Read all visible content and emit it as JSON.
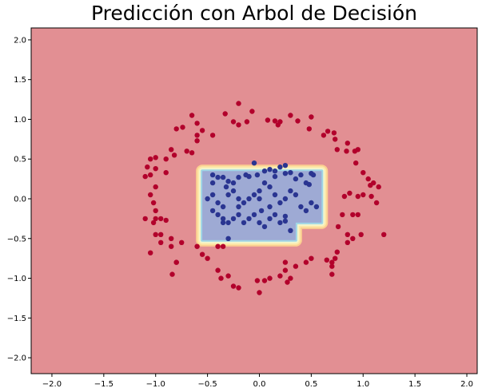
{
  "chart_data": {
    "type": "scatter",
    "title": "Predicción con Arbol de Decisión",
    "xlim": [
      -2.2,
      2.1
    ],
    "ylim": [
      -2.2,
      2.15
    ],
    "x_ticks": [
      "−2.0",
      "−1.5",
      "−1.0",
      "−0.5",
      "0.0",
      "0.5",
      "1.0",
      "1.5",
      "2.0"
    ],
    "x_tick_values": [
      -2.0,
      -1.5,
      -1.0,
      -0.5,
      0.0,
      0.5,
      1.0,
      1.5,
      2.0
    ],
    "y_ticks": [
      "2.0",
      "1.5",
      "1.0",
      "0.5",
      "0.0",
      "−0.5",
      "−1.0",
      "−1.5",
      "−2.0"
    ],
    "y_tick_values": [
      2.0,
      1.5,
      1.0,
      0.5,
      0.0,
      -0.5,
      -1.0,
      -1.5,
      -2.0
    ],
    "background_region_color": "#e28f93",
    "inner_region_color": "#9eaad4",
    "inner_region_edge_colors": [
      "#9fd5e6",
      "#f3f6cc",
      "#fde8a8",
      "#fbcf91"
    ],
    "decision_region_polygon": [
      [
        -0.55,
        0.35
      ],
      [
        0.6,
        0.35
      ],
      [
        0.6,
        -0.3
      ],
      [
        0.35,
        -0.3
      ],
      [
        0.35,
        -0.52
      ],
      [
        -0.55,
        -0.52
      ]
    ],
    "series": [
      {
        "color": "#b2002b",
        "points": [
          [
            -0.2,
            1.2
          ],
          [
            -0.07,
            1.1
          ],
          [
            0.15,
            0.98
          ],
          [
            0.18,
            0.93
          ],
          [
            0.2,
            0.97
          ],
          [
            0.08,
            0.99
          ],
          [
            -0.33,
            1.07
          ],
          [
            -0.65,
            1.05
          ],
          [
            -0.74,
            0.9
          ],
          [
            -0.6,
            0.95
          ],
          [
            -0.6,
            0.8
          ],
          [
            -0.6,
            0.73
          ],
          [
            -0.8,
            0.88
          ],
          [
            -0.55,
            0.86
          ],
          [
            -0.45,
            0.8
          ],
          [
            -0.2,
            0.93
          ],
          [
            -0.25,
            0.97
          ],
          [
            -0.12,
            0.97
          ],
          [
            0.3,
            1.05
          ],
          [
            0.37,
            0.98
          ],
          [
            0.5,
            1.03
          ],
          [
            0.48,
            0.88
          ],
          [
            0.62,
            0.8
          ],
          [
            0.66,
            0.85
          ],
          [
            0.72,
            0.83
          ],
          [
            0.73,
            0.75
          ],
          [
            0.75,
            0.62
          ],
          [
            0.85,
            0.7
          ],
          [
            0.92,
            0.6
          ],
          [
            0.95,
            0.62
          ],
          [
            0.84,
            0.6
          ],
          [
            0.93,
            0.45
          ],
          [
            1.0,
            0.33
          ],
          [
            1.05,
            0.25
          ],
          [
            1.1,
            0.2
          ],
          [
            1.15,
            0.15
          ],
          [
            1.07,
            0.17
          ],
          [
            0.82,
            0.03
          ],
          [
            0.87,
            0.07
          ],
          [
            0.95,
            0.03
          ],
          [
            1.0,
            0.05
          ],
          [
            1.08,
            0.03
          ],
          [
            1.13,
            -0.05
          ],
          [
            0.9,
            -0.2
          ],
          [
            0.8,
            -0.2
          ],
          [
            0.95,
            -0.2
          ],
          [
            0.76,
            -0.35
          ],
          [
            0.85,
            -0.45
          ],
          [
            0.9,
            -0.5
          ],
          [
            0.98,
            -0.45
          ],
          [
            1.2,
            -0.45
          ],
          [
            0.85,
            -0.55
          ],
          [
            0.75,
            -0.67
          ],
          [
            0.73,
            -0.75
          ],
          [
            0.7,
            -0.8
          ],
          [
            0.65,
            -0.77
          ],
          [
            0.7,
            -0.85
          ],
          [
            0.7,
            -0.95
          ],
          [
            0.5,
            -0.75
          ],
          [
            0.45,
            -0.8
          ],
          [
            0.35,
            -0.85
          ],
          [
            0.25,
            -0.8
          ],
          [
            0.25,
            -0.9
          ],
          [
            0.2,
            -0.97
          ],
          [
            0.27,
            -1.05
          ],
          [
            0.3,
            -1.0
          ],
          [
            0.1,
            -1.0
          ],
          [
            0.05,
            -1.03
          ],
          [
            -0.02,
            -1.03
          ],
          [
            0.0,
            -1.18
          ],
          [
            -0.2,
            -1.12
          ],
          [
            -0.25,
            -1.1
          ],
          [
            -0.3,
            -0.97
          ],
          [
            -0.4,
            -0.9
          ],
          [
            -0.37,
            -1.0
          ],
          [
            -0.5,
            -0.75
          ],
          [
            -0.6,
            -0.6
          ],
          [
            -0.55,
            -0.7
          ],
          [
            -0.4,
            -0.6
          ],
          [
            -0.35,
            -0.6
          ],
          [
            -0.75,
            -0.55
          ],
          [
            -0.85,
            -0.5
          ],
          [
            -0.85,
            -0.6
          ],
          [
            -0.95,
            -0.45
          ],
          [
            -0.95,
            -0.55
          ],
          [
            -1.0,
            -0.45
          ],
          [
            -0.8,
            -0.8
          ],
          [
            -0.84,
            -0.95
          ],
          [
            -1.02,
            -0.3
          ],
          [
            -1.0,
            -0.25
          ],
          [
            -0.95,
            -0.25
          ],
          [
            -0.9,
            -0.27
          ],
          [
            -1.1,
            -0.25
          ],
          [
            -1.0,
            -0.15
          ],
          [
            -1.02,
            -0.05
          ],
          [
            -1.05,
            0.05
          ],
          [
            -1.0,
            0.15
          ],
          [
            -0.9,
            0.33
          ],
          [
            -1.0,
            0.38
          ],
          [
            -1.05,
            0.3
          ],
          [
            -1.1,
            0.28
          ],
          [
            -1.08,
            0.4
          ],
          [
            -1.05,
            0.5
          ],
          [
            -1.0,
            0.52
          ],
          [
            -0.9,
            0.5
          ],
          [
            -0.85,
            0.62
          ],
          [
            -0.82,
            0.55
          ],
          [
            -0.7,
            0.6
          ],
          [
            -0.65,
            0.58
          ],
          [
            -1.05,
            -0.68
          ],
          [
            -0.8,
            -0.8
          ]
        ]
      },
      {
        "color": "#2a3591",
        "points": [
          [
            -0.2,
            0.27
          ],
          [
            -0.13,
            0.3
          ],
          [
            -0.1,
            0.28
          ],
          [
            -0.05,
            0.45
          ],
          [
            -0.02,
            0.3
          ],
          [
            0.05,
            0.35
          ],
          [
            0.1,
            0.37
          ],
          [
            0.15,
            0.28
          ],
          [
            0.2,
            0.4
          ],
          [
            0.25,
            0.42
          ],
          [
            0.25,
            0.32
          ],
          [
            0.3,
            0.33
          ],
          [
            0.35,
            0.25
          ],
          [
            0.4,
            0.3
          ],
          [
            0.48,
            0.18
          ],
          [
            0.5,
            0.32
          ],
          [
            0.45,
            0.2
          ],
          [
            0.52,
            0.3
          ],
          [
            -0.4,
            0.27
          ],
          [
            -0.35,
            0.27
          ],
          [
            -0.3,
            0.22
          ],
          [
            -0.45,
            0.2
          ],
          [
            -0.32,
            0.15
          ],
          [
            -0.25,
            0.2
          ],
          [
            -0.5,
            0.0
          ],
          [
            -0.45,
            0.05
          ],
          [
            -0.4,
            -0.05
          ],
          [
            -0.35,
            -0.1
          ],
          [
            -0.3,
            0.05
          ],
          [
            -0.25,
            0.1
          ],
          [
            -0.2,
            -0.1
          ],
          [
            -0.15,
            -0.05
          ],
          [
            -0.1,
            0.0
          ],
          [
            -0.05,
            0.05
          ],
          [
            0.0,
            0.1
          ],
          [
            0.05,
            0.2
          ],
          [
            0.1,
            0.15
          ],
          [
            0.15,
            0.05
          ],
          [
            0.2,
            -0.05
          ],
          [
            0.25,
            0.0
          ],
          [
            0.3,
            0.1
          ],
          [
            0.35,
            0.05
          ],
          [
            0.4,
            -0.1
          ],
          [
            0.45,
            -0.15
          ],
          [
            0.5,
            -0.05
          ],
          [
            0.55,
            -0.1
          ],
          [
            -0.45,
            -0.15
          ],
          [
            -0.4,
            -0.2
          ],
          [
            -0.35,
            -0.25
          ],
          [
            -0.3,
            -0.3
          ],
          [
            -0.25,
            -0.25
          ],
          [
            -0.2,
            -0.2
          ],
          [
            -0.15,
            -0.3
          ],
          [
            -0.1,
            -0.25
          ],
          [
            -0.05,
            -0.2
          ],
          [
            0.0,
            -0.3
          ],
          [
            0.05,
            -0.35
          ],
          [
            0.1,
            -0.25
          ],
          [
            0.15,
            -0.2
          ],
          [
            0.2,
            -0.3
          ],
          [
            0.25,
            -0.22
          ],
          [
            0.3,
            -0.4
          ],
          [
            -0.3,
            -0.5
          ],
          [
            -0.35,
            -0.3
          ],
          [
            0.0,
            0.0
          ],
          [
            0.02,
            -0.15
          ],
          [
            -0.2,
            0.0
          ],
          [
            0.1,
            -0.1
          ],
          [
            -0.45,
            0.3
          ],
          [
            0.15,
            0.35
          ],
          [
            0.25,
            -0.28
          ]
        ]
      }
    ]
  }
}
